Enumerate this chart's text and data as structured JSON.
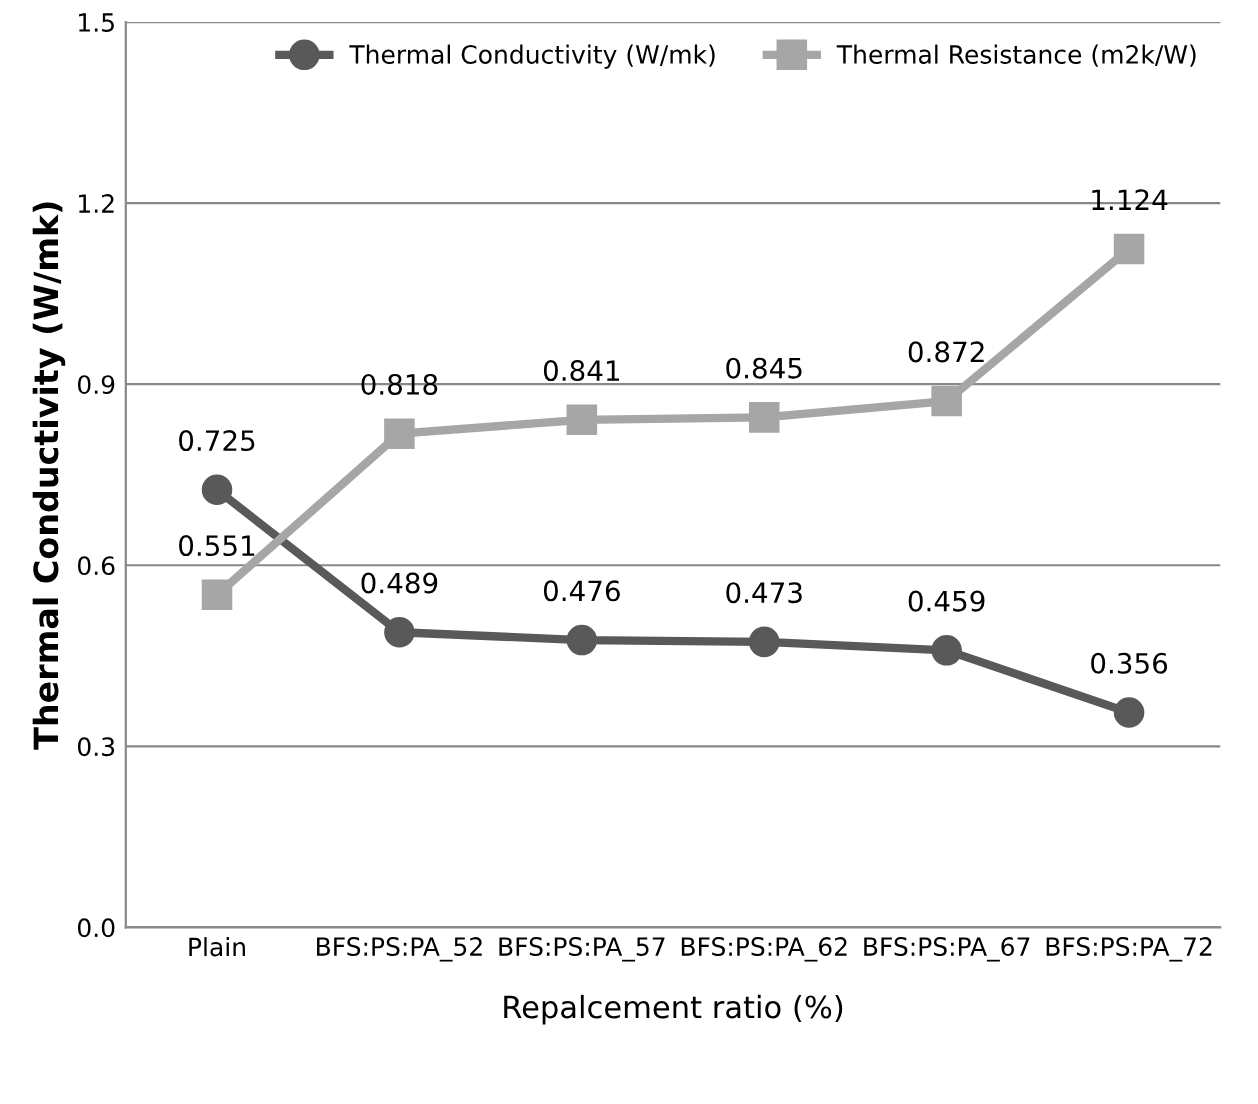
{
  "chart_data": {
    "type": "line",
    "xlabel": "Repalcement ratio (%)",
    "ylabel": "Thermal Conductivity (W/mk)",
    "categories": [
      "Plain",
      "BFS:PS:PA_52",
      "BFS:PS:PA_57",
      "BFS:PS:PA_62",
      "BFS:PS:PA_67",
      "BFS:PS:PA_72"
    ],
    "series": [
      {
        "name": "Thermal Conductivity (W/mk)",
        "color": "#595959",
        "marker": "circle",
        "values": [
          0.725,
          0.489,
          0.476,
          0.473,
          0.459,
          0.356
        ]
      },
      {
        "name": "Thermal Resistance (m2k/W)",
        "color": "#a6a6a6",
        "marker": "square",
        "values": [
          0.551,
          0.818,
          0.841,
          0.845,
          0.872,
          1.124
        ]
      }
    ],
    "ylim": [
      0,
      1.5
    ],
    "yticks": [
      {
        "value": 0,
        "label": "0.0"
      },
      {
        "value": 0.3,
        "label": "0.3"
      },
      {
        "value": 0.6,
        "label": "0.6"
      },
      {
        "value": 0.9,
        "label": "0.9"
      },
      {
        "value": 1.2,
        "label": "1.2"
      },
      {
        "value": 1.5,
        "label": "1.5"
      }
    ],
    "grid": "y",
    "legend": "top right",
    "data_labels": true,
    "line_style": "solid"
  }
}
